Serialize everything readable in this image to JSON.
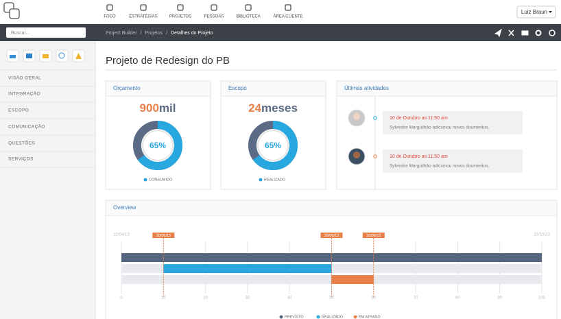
{
  "topbar": {
    "nav": [
      "FOCO",
      "ESTRATÉGIAS",
      "PROJETOS",
      "PESSOAS",
      "BIBLIOTECA",
      "ÁREA CLIENTE"
    ],
    "user": "Luiz Braun"
  },
  "search_placeholder": "Buscar...",
  "breadcrumb": [
    "Project Builder",
    "Projetos",
    "Detalhes do Projeto"
  ],
  "breadcrumb_separator": "/",
  "sidebar": {
    "menu": [
      "VISÃO GERAL",
      "INTEGRAÇÃO",
      "ESCOPO",
      "COMUNICAÇÃO",
      "QUESTÕES",
      "SERVIÇOS"
    ]
  },
  "page_title": "Projeto de Redesign do PB",
  "budget": {
    "title": "Orçamento",
    "amount": 900,
    "unit": "mil",
    "percent": 65,
    "percent_label": "65%",
    "legend": "CONSUMIDO"
  },
  "scope": {
    "title": "Escopo",
    "amount": 24,
    "unit": "meses",
    "percent": 65,
    "percent_label": "65%",
    "legend": "REALIZADO"
  },
  "activities": {
    "title": "Últimas atividades",
    "items": [
      {
        "time": "10 de Outubro as 11:50 am",
        "text": "Sylvestre Merguilhão adicionou novos doumentos."
      },
      {
        "time": "10 de Outubro as 11:50 am",
        "text": "Sylvestre Merguilhão adicionou novos doumentos."
      }
    ]
  },
  "overview": {
    "title": "Overview",
    "xlim": [
      0,
      100
    ],
    "xticks": [
      0,
      10,
      20,
      30,
      40,
      50,
      60,
      70,
      80,
      90,
      100
    ],
    "start_label": "22/04/13",
    "end_label": "10/10/13",
    "markers": [
      {
        "value": 10,
        "label": "30/06/13"
      },
      {
        "value": 50,
        "label": "30/06/13"
      },
      {
        "value": 60,
        "label": "30/06/13"
      }
    ],
    "bars": [
      {
        "name": "PREVISTO",
        "color": "#56667f",
        "start": 0,
        "end": 100
      },
      {
        "name": "REALIZADO",
        "color": "#29a8e0",
        "start": 10,
        "end": 50
      },
      {
        "name": "EM ATRASO",
        "color": "#e8804a",
        "start": 50,
        "end": 60
      }
    ]
  }
}
